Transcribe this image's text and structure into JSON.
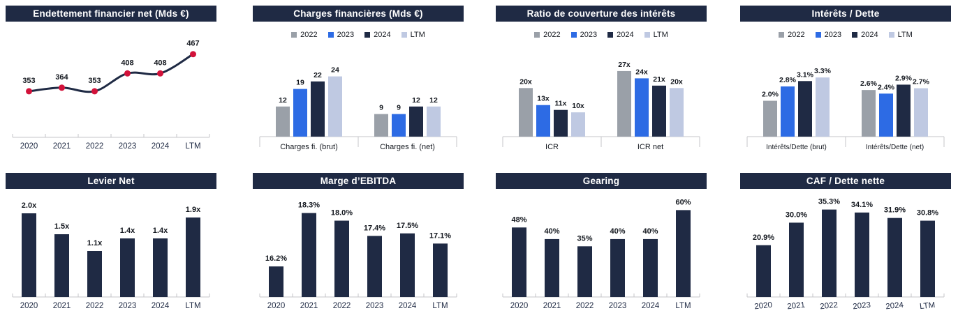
{
  "colors": {
    "header_bg": "#1f2a44",
    "header_text": "#ffffff",
    "bar": "#1f2a44",
    "axis": "#c4c6c9",
    "label": "#14181f",
    "xlabel": "#1f2a44"
  },
  "palette": [
    "#9aa0a8",
    "#2d6be4",
    "#1f2a44",
    "#bfc9e2"
  ],
  "chart_data": [
    {
      "type": "line",
      "title": "Endettement financier net (Mds €)",
      "categories": [
        "2020",
        "2021",
        "2022",
        "2023",
        "2024",
        "LTM"
      ],
      "values": [
        353,
        364,
        353,
        408,
        408,
        467
      ],
      "labels": [
        "353",
        "364",
        "353",
        "408",
        "408",
        "467"
      ],
      "ylim": [
        250,
        550
      ],
      "line_color": "#1f2a44",
      "marker_color": "#d2123a",
      "legend_position": "none",
      "grid": false
    },
    {
      "type": "grouped-bar",
      "title": "Charges financières (Mds €)",
      "legend": [
        "2022",
        "2023",
        "2024",
        "LTM"
      ],
      "legend_position": "top",
      "groups": [
        {
          "label": "Charges fi. (brut)",
          "values": [
            12,
            19,
            22,
            24
          ],
          "labels": [
            "12",
            "19",
            "22",
            "24"
          ]
        },
        {
          "label": "Charges fi. (net)",
          "values": [
            9,
            9,
            12,
            12
          ],
          "labels": [
            "9",
            "9",
            "12",
            "12"
          ]
        }
      ],
      "ylim": [
        0,
        30
      ],
      "grid": false
    },
    {
      "type": "grouped-bar",
      "title": "Ratio de couverture des intérêts",
      "legend": [
        "2022",
        "2023",
        "2024",
        "LTM"
      ],
      "legend_position": "top",
      "groups": [
        {
          "label": "ICR",
          "values": [
            20,
            13,
            11,
            10
          ],
          "labels": [
            "20x",
            "13x",
            "11x",
            "10x"
          ]
        },
        {
          "label": "ICR net",
          "values": [
            27,
            24,
            21,
            20
          ],
          "labels": [
            "27x",
            "24x",
            "21x",
            "20x"
          ]
        }
      ],
      "ylim": [
        0,
        31
      ],
      "grid": false
    },
    {
      "type": "grouped-bar",
      "title": "Intérêts / Dette",
      "legend": [
        "2022",
        "2023",
        "2024",
        "LTM"
      ],
      "legend_position": "top",
      "small_xlabels": true,
      "groups": [
        {
          "label": "Intérêts/Dette (brut)",
          "values": [
            2.0,
            2.8,
            3.1,
            3.3
          ],
          "labels": [
            "2.0%",
            "2.8%",
            "3.1%",
            "3.3%"
          ]
        },
        {
          "label": "Intérêts/Dette (net)",
          "values": [
            2.6,
            2.4,
            2.9,
            2.7
          ],
          "labels": [
            "2.6%",
            "2.4%",
            "2.9%",
            "2.7%"
          ]
        }
      ],
      "ylim": [
        0,
        4.2
      ],
      "grid": false
    },
    {
      "type": "bar",
      "title": "Levier Net",
      "categories": [
        "2020",
        "2021",
        "2022",
        "2023",
        "2024",
        "LTM"
      ],
      "values": [
        2.0,
        1.5,
        1.1,
        1.4,
        1.4,
        1.9
      ],
      "labels": [
        "2.0x",
        "1.5x",
        "1.1x",
        "1.4x",
        "1.4x",
        "1.9x"
      ],
      "ylim": [
        0,
        2.25
      ],
      "legend_position": "none",
      "grid": false
    },
    {
      "type": "bar",
      "title": "Marge d’EBITDA",
      "categories": [
        "2020",
        "2021",
        "2022",
        "2023",
        "2024",
        "LTM"
      ],
      "values": [
        16.2,
        18.3,
        18.0,
        17.4,
        17.5,
        17.1
      ],
      "labels": [
        "16.2%",
        "18.3%",
        "18.0%",
        "17.4%",
        "17.5%",
        "17.1%"
      ],
      "ylim": [
        15,
        18.7
      ],
      "legend_position": "none",
      "grid": false
    },
    {
      "type": "bar",
      "title": "Gearing",
      "categories": [
        "2020",
        "2021",
        "2022",
        "2023",
        "2024",
        "LTM"
      ],
      "values": [
        48,
        40,
        35,
        40,
        40,
        60
      ],
      "labels": [
        "48%",
        "40%",
        "35%",
        "40%",
        "40%",
        "60%"
      ],
      "ylim": [
        0,
        65
      ],
      "legend_position": "none",
      "grid": false
    },
    {
      "type": "bar",
      "title": "CAF / Dette nette",
      "categories": [
        "2020",
        "2021",
        "2022",
        "2023",
        "2024",
        "LTM"
      ],
      "values": [
        20.9,
        30.0,
        35.3,
        34.1,
        31.9,
        30.8
      ],
      "labels": [
        "20.9%",
        "30.0%",
        "35.3%",
        "34.1%",
        "31.9%",
        "30.8%"
      ],
      "ylim": [
        0,
        38
      ],
      "tilt_xlabels": true,
      "legend_position": "none",
      "grid": false
    }
  ]
}
